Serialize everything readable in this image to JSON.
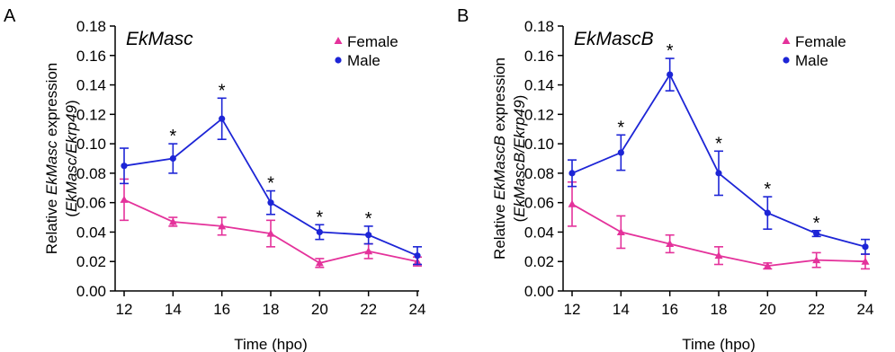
{
  "panels": [
    {
      "letter": "A",
      "ylabel_prefix": "Relative ",
      "ylabel_gene": "EkMasc",
      "ylabel_suffix": " expression",
      "ylabel2_open": "(",
      "ylabel2_italic": "EkMasc/Ekrp49",
      "ylabel2_close": ")"
    },
    {
      "letter": "B",
      "ylabel_prefix": "Relative ",
      "ylabel_gene": "EkMascB",
      "ylabel_suffix": " expression",
      "ylabel2_open": "(",
      "ylabel2_italic": "EkMascB/Ekrp49",
      "ylabel2_close": ")"
    }
  ],
  "chart_data": [
    {
      "type": "line",
      "title": "EkMasc",
      "xlabel": "Time (hpo)",
      "ylabel": "Relative EkMasc expression (EkMasc/Ekrp49)",
      "x": [
        12,
        14,
        16,
        18,
        20,
        22,
        24
      ],
      "xlim": [
        12,
        24
      ],
      "ylim": [
        0,
        0.18
      ],
      "yticks": [
        "0.00",
        "0.02",
        "0.04",
        "0.06",
        "0.08",
        "0.10",
        "0.12",
        "0.14",
        "0.16",
        "0.18"
      ],
      "legend_position": "top-right",
      "grid": false,
      "significance_marker": "*",
      "significant_x": [
        14,
        16,
        18,
        20,
        22
      ],
      "series": [
        {
          "name": "Female",
          "color": "#e4329b",
          "marker": "triangle",
          "values": [
            0.062,
            0.047,
            0.044,
            0.039,
            0.019,
            0.027,
            0.02
          ],
          "errors": [
            0.014,
            0.003,
            0.006,
            0.009,
            0.003,
            0.005,
            0.003
          ]
        },
        {
          "name": "Male",
          "color": "#1d25d6",
          "marker": "circle",
          "values": [
            0.085,
            0.09,
            0.117,
            0.06,
            0.04,
            0.038,
            0.024
          ],
          "errors": [
            0.012,
            0.01,
            0.014,
            0.008,
            0.005,
            0.006,
            0.006
          ]
        }
      ]
    },
    {
      "type": "line",
      "title": "EkMascB",
      "xlabel": "Time (hpo)",
      "ylabel": "Relative EkMascB expression (EkMascB/Ekrp49)",
      "x": [
        12,
        14,
        16,
        18,
        20,
        22,
        24
      ],
      "xlim": [
        12,
        24
      ],
      "ylim": [
        0,
        0.18
      ],
      "yticks": [
        "0.00",
        "0.02",
        "0.04",
        "0.06",
        "0.08",
        "0.10",
        "0.12",
        "0.14",
        "0.16",
        "0.18"
      ],
      "legend_position": "top-right",
      "grid": false,
      "significance_marker": "*",
      "significant_x": [
        14,
        16,
        18,
        20,
        22
      ],
      "series": [
        {
          "name": "Female",
          "color": "#e4329b",
          "marker": "triangle",
          "values": [
            0.059,
            0.04,
            0.032,
            0.024,
            0.017,
            0.021,
            0.02
          ],
          "errors": [
            0.015,
            0.011,
            0.006,
            0.006,
            0.002,
            0.005,
            0.005
          ]
        },
        {
          "name": "Male",
          "color": "#1d25d6",
          "marker": "circle",
          "values": [
            0.08,
            0.094,
            0.147,
            0.08,
            0.053,
            0.039,
            0.03
          ],
          "errors": [
            0.009,
            0.012,
            0.011,
            0.015,
            0.011,
            0.002,
            0.005
          ]
        }
      ]
    }
  ]
}
